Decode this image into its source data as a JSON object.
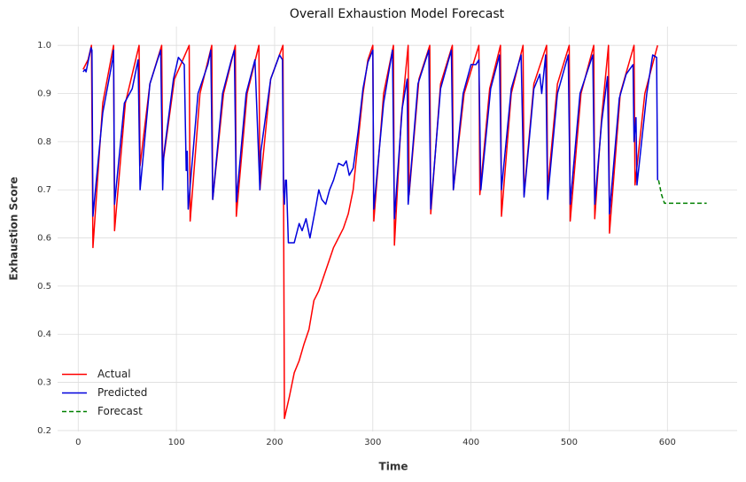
{
  "chart_data": {
    "type": "line",
    "title": "Overall Exhaustion Model Forecast",
    "x_label": "Time",
    "y_label": "Exhaustion Score",
    "xlim": [
      -21,
      671
    ],
    "ylim": [
      0.198,
      1.039
    ],
    "xticks": [
      0,
      100,
      200,
      300,
      400,
      500,
      600
    ],
    "yticks": [
      0.2,
      0.3,
      0.4,
      0.5,
      0.6,
      0.7,
      0.8,
      0.9,
      {
        "value": 1,
        "label": "1.0"
      }
    ],
    "grid": true,
    "legend": "lower left",
    "series": [
      {
        "name": "Actual",
        "color": "#ff0000",
        "linestyle": "solid",
        "x": [
          5,
          10,
          13.5,
          15,
          25,
          36,
          37,
          48,
          62,
          63,
          73,
          85,
          86,
          98,
          113,
          114,
          124,
          136,
          137,
          148,
          160,
          161,
          172,
          184,
          185,
          196,
          208.5,
          210,
          215,
          220,
          225,
          230,
          235,
          240,
          245,
          250,
          255,
          260,
          265,
          270,
          275,
          280,
          285,
          290,
          295,
          300,
          301,
          311,
          321,
          322,
          329,
          336,
          337,
          347,
          358,
          359,
          369,
          381,
          382,
          393,
          408,
          409,
          419,
          430,
          431,
          441,
          453,
          454,
          464,
          477,
          478,
          488,
          500,
          501,
          512,
          525,
          526,
          533,
          540,
          541,
          552,
          566,
          567,
          577,
          590
        ],
        "values": [
          0.95,
          0.97,
          1.0,
          0.58,
          0.88,
          1.0,
          0.615,
          0.88,
          1.0,
          0.75,
          0.92,
          1.0,
          0.75,
          0.93,
          1.0,
          0.635,
          0.9,
          1.0,
          0.68,
          0.9,
          1.0,
          0.645,
          0.9,
          1.0,
          0.7,
          0.93,
          1.0,
          0.225,
          0.27,
          0.32,
          0.345,
          0.38,
          0.41,
          0.47,
          0.49,
          0.52,
          0.55,
          0.58,
          0.6,
          0.62,
          0.65,
          0.7,
          0.8,
          0.9,
          0.97,
          1.0,
          0.635,
          0.9,
          1.0,
          0.585,
          0.85,
          1.0,
          0.69,
          0.93,
          1.0,
          0.65,
          0.92,
          1.0,
          0.7,
          0.9,
          1.0,
          0.69,
          0.91,
          1.0,
          0.645,
          0.9,
          1.0,
          0.69,
          0.92,
          1.0,
          0.7,
          0.92,
          1.0,
          0.635,
          0.9,
          1.0,
          0.64,
          0.85,
          1.0,
          0.61,
          0.9,
          1.0,
          0.71,
          0.9,
          1.0
        ]
      },
      {
        "name": "Predicted",
        "color": "#0000dd",
        "linestyle": "solid",
        "x": [
          5,
          7,
          8,
          13,
          14,
          15,
          25,
          35,
          36,
          37,
          47,
          55,
          61,
          63,
          73,
          80,
          84,
          86,
          87,
          97,
          102,
          106,
          108,
          110,
          111,
          112,
          122,
          132,
          135,
          137,
          147,
          156,
          159,
          161,
          171,
          180,
          185,
          186,
          196,
          205,
          208,
          209,
          210,
          211,
          212,
          214,
          220,
          225,
          228,
          232,
          236,
          242,
          245,
          248,
          252,
          256,
          260,
          265,
          270,
          273,
          276,
          280,
          285,
          290,
          295,
          300,
          301,
          311,
          320,
          322,
          330,
          335,
          336,
          346,
          357,
          359,
          369,
          380,
          382,
          392,
          400,
          405,
          408,
          410,
          420,
          429,
          431,
          441,
          451,
          454,
          464,
          470,
          472,
          476,
          478,
          488,
          499,
          501,
          511,
          524,
          526,
          533,
          539,
          541,
          551,
          558,
          565,
          566,
          568,
          569,
          579,
          585,
          589,
          590
        ],
        "values": [
          0.945,
          0.95,
          0.945,
          0.995,
          0.99,
          0.645,
          0.86,
          0.97,
          0.99,
          0.67,
          0.88,
          0.91,
          0.97,
          0.7,
          0.92,
          0.965,
          0.99,
          0.7,
          0.77,
          0.93,
          0.975,
          0.965,
          0.96,
          0.74,
          0.78,
          0.66,
          0.9,
          0.96,
          0.99,
          0.68,
          0.9,
          0.97,
          0.99,
          0.675,
          0.9,
          0.97,
          0.7,
          0.78,
          0.93,
          0.98,
          0.97,
          0.7,
          0.67,
          0.72,
          0.72,
          0.59,
          0.59,
          0.63,
          0.615,
          0.64,
          0.6,
          0.665,
          0.7,
          0.68,
          0.67,
          0.7,
          0.72,
          0.755,
          0.75,
          0.76,
          0.73,
          0.745,
          0.82,
          0.91,
          0.965,
          0.99,
          0.66,
          0.88,
          0.99,
          0.64,
          0.87,
          0.93,
          0.67,
          0.92,
          0.99,
          0.66,
          0.91,
          0.99,
          0.7,
          0.9,
          0.96,
          0.96,
          0.97,
          0.7,
          0.91,
          0.98,
          0.7,
          0.91,
          0.98,
          0.685,
          0.91,
          0.94,
          0.9,
          0.98,
          0.68,
          0.9,
          0.98,
          0.67,
          0.9,
          0.98,
          0.67,
          0.84,
          0.935,
          0.65,
          0.89,
          0.94,
          0.96,
          0.8,
          0.85,
          0.71,
          0.9,
          0.98,
          0.975,
          0.72
        ]
      },
      {
        "name": "Forecast",
        "color": "#008000",
        "linestyle": "dashed",
        "x": [
          591,
          594,
          597,
          640
        ],
        "values": [
          0.72,
          0.69,
          0.672,
          0.672
        ]
      }
    ]
  }
}
